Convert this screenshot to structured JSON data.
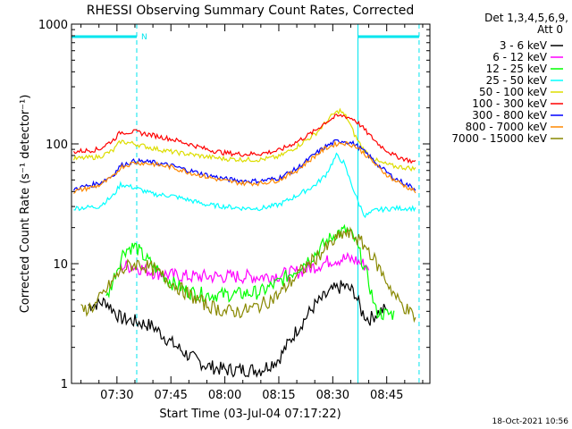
{
  "colors": {
    "background": "#ffffff",
    "axis": "#000000",
    "attenuator": "#00e5ee",
    "night": "#00e5ee"
  },
  "footer": {
    "timestamp": "18-Oct-2021 10:56"
  },
  "chart_data": {
    "type": "line",
    "title": "RHESSI Observing Summary Count Rates, Corrected",
    "xlabel": "Start Time (03-Jul-04 07:17:22)",
    "ylabel": "Corrected Count Rate (s⁻¹ detector⁻¹)",
    "yscale": "log",
    "ylim": [
      1,
      1000
    ],
    "xlim": [
      "07:17:22",
      "08:57:00"
    ],
    "x_ticks": [
      "07:30",
      "07:45",
      "08:00",
      "08:15",
      "08:30",
      "08:45"
    ],
    "y_ticks": [
      "1",
      "10",
      "100",
      "1000"
    ],
    "legend": {
      "placement": "right",
      "header": [
        "Det 1,3,4,5,6,9,",
        "Att 0"
      ]
    },
    "annotations": {
      "attenuator_flag_label": "N",
      "attenuator_segments": [
        [
          "07:17:22",
          "07:35:30"
        ],
        [
          "08:37:00",
          "08:54:00"
        ]
      ],
      "night_boundaries": [
        "07:35:30",
        "08:37:00",
        "08:54:00"
      ]
    },
    "series": [
      {
        "name": "3 - 6 keV",
        "color": "#000000",
        "points": [
          [
            "07:22",
            4.5
          ],
          [
            "07:27",
            4.8
          ],
          [
            "07:31",
            3.5
          ],
          [
            "07:35",
            3.3
          ],
          [
            "07:40",
            3.0
          ],
          [
            "07:45",
            2.2
          ],
          [
            "07:50",
            1.7
          ],
          [
            "07:55",
            1.4
          ],
          [
            "08:00",
            1.3
          ],
          [
            "08:05",
            1.3
          ],
          [
            "08:10",
            1.3
          ],
          [
            "08:15",
            1.6
          ],
          [
            "08:20",
            2.8
          ],
          [
            "08:25",
            4.5
          ],
          [
            "08:30",
            6.0
          ],
          [
            "08:33",
            6.5
          ],
          [
            "08:36",
            5.8
          ],
          [
            "08:38",
            4.0
          ],
          [
            "08:40",
            3.4
          ],
          [
            "08:43",
            4.0
          ],
          [
            "08:45",
            4.2
          ]
        ]
      },
      {
        "name": "6 - 12 keV",
        "color": "#ff00ff",
        "points": [
          [
            "07:31",
            9.5
          ],
          [
            "07:35",
            9.5
          ],
          [
            "07:40",
            8.5
          ],
          [
            "07:45",
            8.0
          ],
          [
            "07:50",
            7.8
          ],
          [
            "07:55",
            7.8
          ],
          [
            "08:00",
            7.8
          ],
          [
            "08:05",
            7.8
          ],
          [
            "08:10",
            7.8
          ],
          [
            "08:15",
            8.0
          ],
          [
            "08:20",
            8.5
          ],
          [
            "08:25",
            9.5
          ],
          [
            "08:30",
            10.8
          ],
          [
            "08:33",
            11.0
          ],
          [
            "08:36",
            10.8
          ],
          [
            "08:38",
            10.0
          ],
          [
            "08:40",
            9.5
          ]
        ]
      },
      {
        "name": "12 - 25 keV",
        "color": "#00ff00",
        "points": [
          [
            "07:27",
            5.0
          ],
          [
            "07:30",
            9.0
          ],
          [
            "07:32",
            13.0
          ],
          [
            "07:35",
            14.0
          ],
          [
            "07:38",
            11.0
          ],
          [
            "07:42",
            8.5
          ],
          [
            "07:45",
            7.0
          ],
          [
            "07:50",
            5.8
          ],
          [
            "07:55",
            5.5
          ],
          [
            "08:00",
            5.5
          ],
          [
            "08:05",
            5.6
          ],
          [
            "08:10",
            5.8
          ],
          [
            "08:15",
            7.0
          ],
          [
            "08:20",
            9.0
          ],
          [
            "08:25",
            12.0
          ],
          [
            "08:28",
            15.0
          ],
          [
            "08:31",
            18.0
          ],
          [
            "08:34",
            19.0
          ],
          [
            "08:36",
            16.0
          ],
          [
            "08:38",
            11.0
          ],
          [
            "08:40",
            7.0
          ],
          [
            "08:42",
            4.0
          ],
          [
            "08:44",
            3.8
          ],
          [
            "08:47",
            3.8
          ]
        ]
      },
      {
        "name": "25 - 50 keV",
        "color": "#00ffff",
        "points": [
          [
            "07:18",
            29
          ],
          [
            "07:25",
            30
          ],
          [
            "07:29",
            37
          ],
          [
            "07:31",
            46
          ],
          [
            "07:35",
            43
          ],
          [
            "07:40",
            38
          ],
          [
            "07:45",
            37
          ],
          [
            "07:50",
            34
          ],
          [
            "07:55",
            31
          ],
          [
            "08:00",
            30
          ],
          [
            "08:05",
            29
          ],
          [
            "08:10",
            29
          ],
          [
            "08:15",
            31
          ],
          [
            "08:20",
            37
          ],
          [
            "08:25",
            45
          ],
          [
            "08:28",
            55
          ],
          [
            "08:31",
            80
          ],
          [
            "08:33",
            70
          ],
          [
            "08:35",
            48
          ],
          [
            "08:37",
            33
          ],
          [
            "08:39",
            25
          ],
          [
            "08:42",
            28
          ],
          [
            "08:47",
            29
          ],
          [
            "08:53",
            29
          ]
        ]
      },
      {
        "name": "50 - 100 keV",
        "color": "#dddd00",
        "points": [
          [
            "07:18",
            75
          ],
          [
            "07:25",
            78
          ],
          [
            "07:29",
            88
          ],
          [
            "07:31",
            105
          ],
          [
            "07:35",
            100
          ],
          [
            "07:40",
            92
          ],
          [
            "07:45",
            86
          ],
          [
            "07:50",
            82
          ],
          [
            "07:55",
            78
          ],
          [
            "08:00",
            75
          ],
          [
            "08:05",
            74
          ],
          [
            "08:10",
            74
          ],
          [
            "08:15",
            78
          ],
          [
            "08:20",
            95
          ],
          [
            "08:25",
            120
          ],
          [
            "08:28",
            150
          ],
          [
            "08:30",
            175
          ],
          [
            "08:32",
            190
          ],
          [
            "08:34",
            165
          ],
          [
            "08:36",
            120
          ],
          [
            "08:38",
            95
          ],
          [
            "08:40",
            80
          ],
          [
            "08:43",
            70
          ],
          [
            "08:47",
            65
          ],
          [
            "08:53",
            62
          ]
        ]
      },
      {
        "name": "100 - 300 keV",
        "color": "#ff0000",
        "points": [
          [
            "07:18",
            86
          ],
          [
            "07:25",
            90
          ],
          [
            "07:29",
            108
          ],
          [
            "07:31",
            125
          ],
          [
            "07:35",
            126
          ],
          [
            "07:40",
            118
          ],
          [
            "07:45",
            110
          ],
          [
            "07:50",
            100
          ],
          [
            "07:55",
            90
          ],
          [
            "08:00",
            84
          ],
          [
            "08:05",
            82
          ],
          [
            "08:10",
            83
          ],
          [
            "08:15",
            88
          ],
          [
            "08:20",
            104
          ],
          [
            "08:25",
            128
          ],
          [
            "08:28",
            152
          ],
          [
            "08:31",
            170
          ],
          [
            "08:33",
            172
          ],
          [
            "08:36",
            160
          ],
          [
            "08:38",
            140
          ],
          [
            "08:40",
            120
          ],
          [
            "08:43",
            98
          ],
          [
            "08:47",
            80
          ],
          [
            "08:53",
            70
          ]
        ]
      },
      {
        "name": "300 - 800 keV",
        "color": "#0000ff",
        "points": [
          [
            "07:18",
            42
          ],
          [
            "07:25",
            47
          ],
          [
            "07:29",
            55
          ],
          [
            "07:31",
            66
          ],
          [
            "07:35",
            72
          ],
          [
            "07:40",
            70
          ],
          [
            "07:45",
            66
          ],
          [
            "07:50",
            60
          ],
          [
            "07:55",
            55
          ],
          [
            "08:00",
            51
          ],
          [
            "08:05",
            49
          ],
          [
            "08:10",
            49
          ],
          [
            "08:15",
            52
          ],
          [
            "08:20",
            62
          ],
          [
            "08:25",
            82
          ],
          [
            "08:28",
            95
          ],
          [
            "08:31",
            105
          ],
          [
            "08:33",
            106
          ],
          [
            "08:36",
            100
          ],
          [
            "08:38",
            90
          ],
          [
            "08:40",
            80
          ],
          [
            "08:43",
            65
          ],
          [
            "08:47",
            52
          ],
          [
            "08:53",
            42
          ]
        ]
      },
      {
        "name": "800 - 7000 keV",
        "color": "#ff8800",
        "points": [
          [
            "07:18",
            40
          ],
          [
            "07:25",
            45
          ],
          [
            "07:29",
            53
          ],
          [
            "07:31",
            64
          ],
          [
            "07:35",
            70
          ],
          [
            "07:40",
            68
          ],
          [
            "07:45",
            64
          ],
          [
            "07:50",
            58
          ],
          [
            "07:55",
            53
          ],
          [
            "08:00",
            49
          ],
          [
            "08:05",
            47
          ],
          [
            "08:10",
            47
          ],
          [
            "08:15",
            50
          ],
          [
            "08:20",
            60
          ],
          [
            "08:25",
            79
          ],
          [
            "08:28",
            92
          ],
          [
            "08:31",
            100
          ],
          [
            "08:33",
            102
          ],
          [
            "08:36",
            97
          ],
          [
            "08:38",
            87
          ],
          [
            "08:40",
            77
          ],
          [
            "08:43",
            62
          ],
          [
            "08:47",
            50
          ],
          [
            "08:53",
            40
          ]
        ]
      },
      {
        "name": "7000 - 15000 keV",
        "color": "#888800",
        "points": [
          [
            "07:20",
            4.0
          ],
          [
            "07:24",
            4.5
          ],
          [
            "07:27",
            6.0
          ],
          [
            "07:30",
            8.0
          ],
          [
            "07:33",
            9.5
          ],
          [
            "07:36",
            10.0
          ],
          [
            "07:40",
            9.0
          ],
          [
            "07:45",
            7.0
          ],
          [
            "07:50",
            5.5
          ],
          [
            "07:55",
            4.5
          ],
          [
            "08:00",
            4.0
          ],
          [
            "08:05",
            4.0
          ],
          [
            "08:10",
            4.5
          ],
          [
            "08:15",
            5.5
          ],
          [
            "08:20",
            8.0
          ],
          [
            "08:25",
            11.0
          ],
          [
            "08:30",
            15.0
          ],
          [
            "08:33",
            18.0
          ],
          [
            "08:36",
            17.0
          ],
          [
            "08:40",
            13.0
          ],
          [
            "08:44",
            8.0
          ],
          [
            "08:48",
            5.0
          ],
          [
            "08:53",
            3.5
          ]
        ]
      }
    ]
  }
}
